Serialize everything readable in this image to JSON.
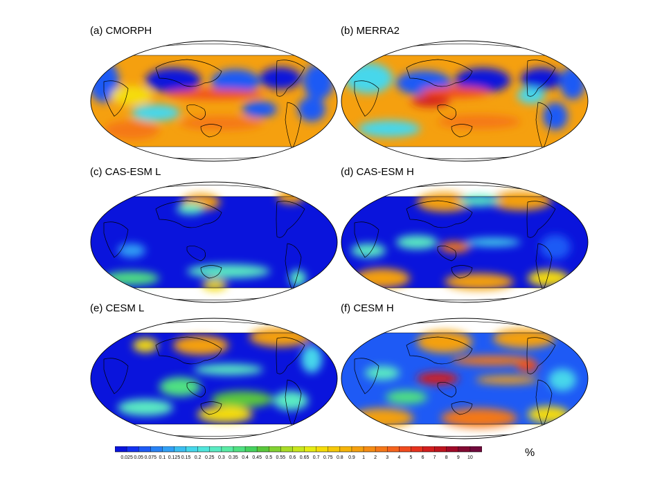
{
  "panels": [
    {
      "title": "(a) CMORPH",
      "map_style": "obs"
    },
    {
      "title": "(b) MERRA2",
      "map_style": "reanalysis"
    },
    {
      "title": "(c) CAS-ESM L",
      "map_style": "low"
    },
    {
      "title": "(d) CAS-ESM H",
      "map_style": "high"
    },
    {
      "title": "(e) CESM L",
      "map_style": "mid"
    },
    {
      "title": "(f) CESM H",
      "map_style": "high2"
    }
  ],
  "colorbar": {
    "labels": [
      "0.025",
      "0.05",
      "0.075",
      "0.1",
      "0.125",
      "0.15",
      "0.2",
      "0.25",
      "0.3",
      "0.35",
      "0.4",
      "0.45",
      "0.5",
      "0.55",
      "0.6",
      "0.65",
      "0.7",
      "0.75",
      "0.8",
      "0.9",
      "1",
      "2",
      "3",
      "4",
      "5",
      "6",
      "7",
      "8",
      "9",
      "10"
    ],
    "colors": [
      "#0a14dc",
      "#1432f0",
      "#1e5af5",
      "#2882f5",
      "#32a0f5",
      "#3cbef0",
      "#46d7eb",
      "#50e6dc",
      "#5aebc3",
      "#5aeba5",
      "#50e182",
      "#46d25f",
      "#5ac83c",
      "#82d232",
      "#aadc28",
      "#c8e61e",
      "#e6eb14",
      "#f5dc0a",
      "#f5c80a",
      "#f5b40a",
      "#f5a00f",
      "#f58c14",
      "#f57819",
      "#f5641e",
      "#f04b1e",
      "#e6321e",
      "#d21e1e",
      "#be141e",
      "#a00a28",
      "#820a32",
      "#700a3c"
    ],
    "unit": "%"
  }
}
